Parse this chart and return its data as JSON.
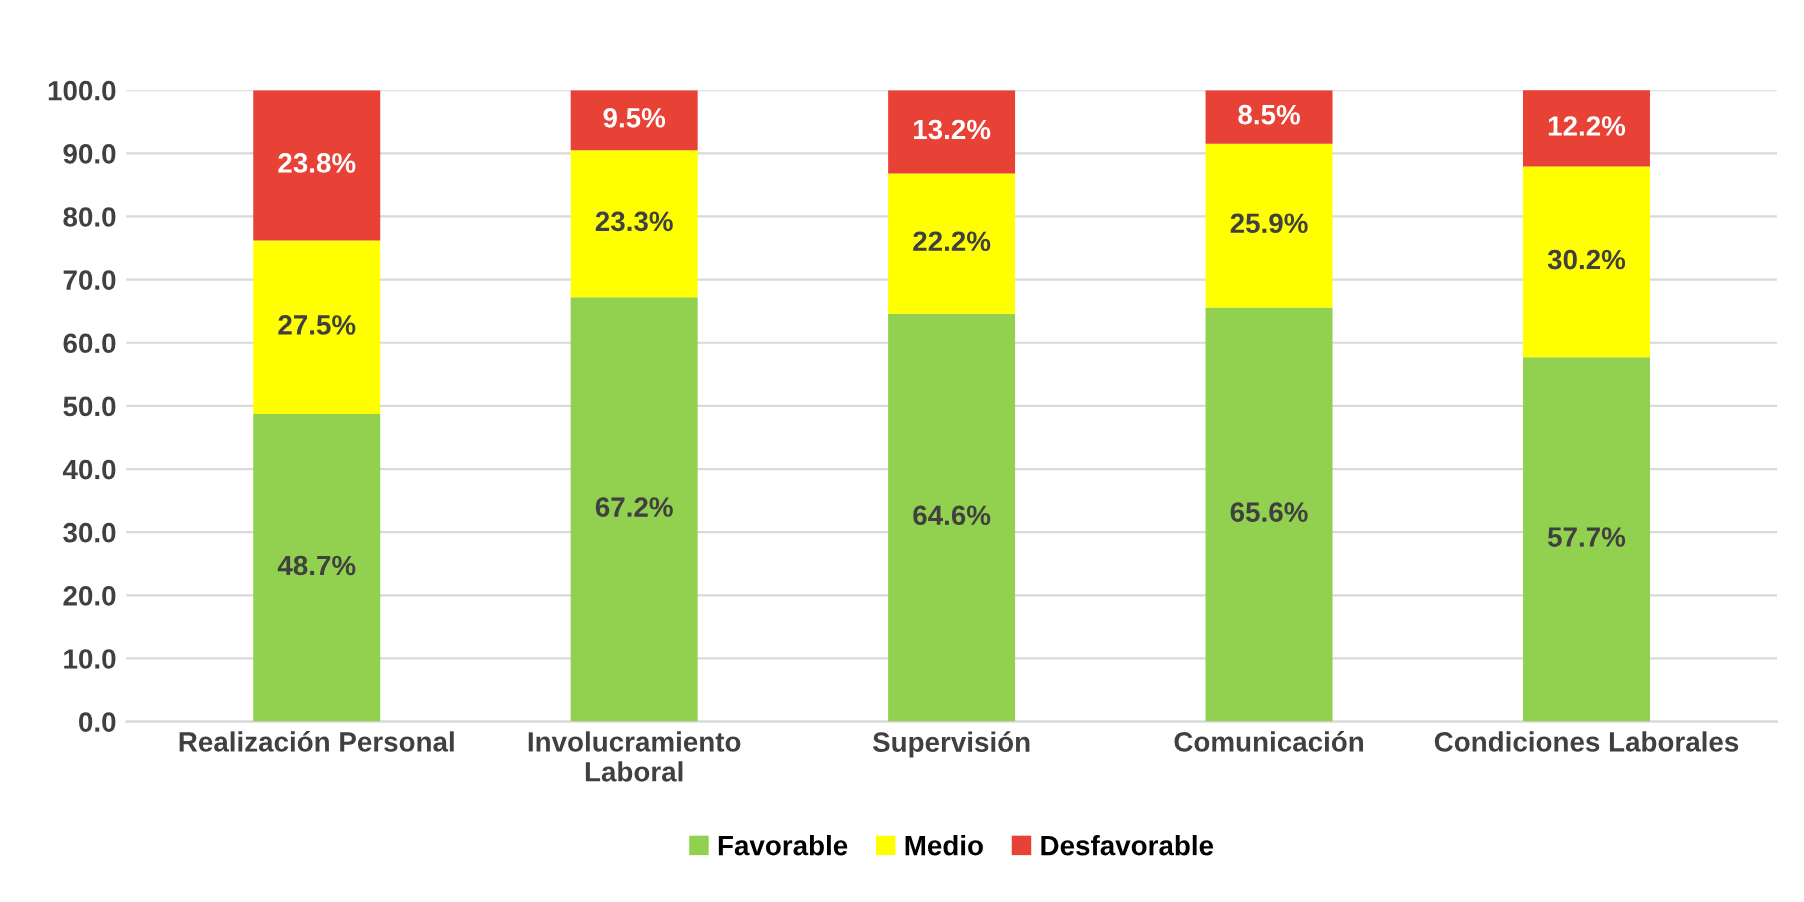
{
  "chart_data": {
    "type": "bar",
    "stacked": true,
    "categories": [
      "Realización Personal",
      "Involucramiento\nLaboral",
      "Supervisión",
      "Comunicación",
      "Condiciones Laborales"
    ],
    "series": [
      {
        "name": "Favorable",
        "color": "#92d050",
        "values": [
          48.7,
          67.2,
          64.6,
          65.6,
          57.7
        ],
        "value_labels": [
          "48.7%",
          "67.2%",
          "64.6%",
          "65.6%",
          "57.7%"
        ]
      },
      {
        "name": "Medio",
        "color": "#ffff00",
        "values": [
          27.5,
          23.3,
          22.2,
          25.9,
          30.2
        ],
        "value_labels": [
          "27.5%",
          "23.3%",
          "22.2%",
          "25.9%",
          "30.2%"
        ]
      },
      {
        "name": "Desfavorable",
        "color": "#e84236",
        "values": [
          23.8,
          9.5,
          13.2,
          8.5,
          12.2
        ],
        "value_labels": [
          "23.8%",
          "9.5%",
          "13.2%",
          "8.5%",
          "12.2%"
        ]
      }
    ],
    "ylim": [
      0,
      100
    ],
    "yticks": [
      {
        "value": 0,
        "label": "0.0"
      },
      {
        "value": 10,
        "label": "10.0"
      },
      {
        "value": 20,
        "label": "20.0"
      },
      {
        "value": 30,
        "label": "30.0"
      },
      {
        "value": 40,
        "label": "40.0"
      },
      {
        "value": 50,
        "label": "50.0"
      },
      {
        "value": 60,
        "label": "60.0"
      },
      {
        "value": 70,
        "label": "70.0"
      },
      {
        "value": 80,
        "label": "80.0"
      },
      {
        "value": 90,
        "label": "90.0"
      },
      {
        "value": 100,
        "label": "100.0"
      }
    ],
    "grid": "y",
    "legend": "bottom"
  }
}
